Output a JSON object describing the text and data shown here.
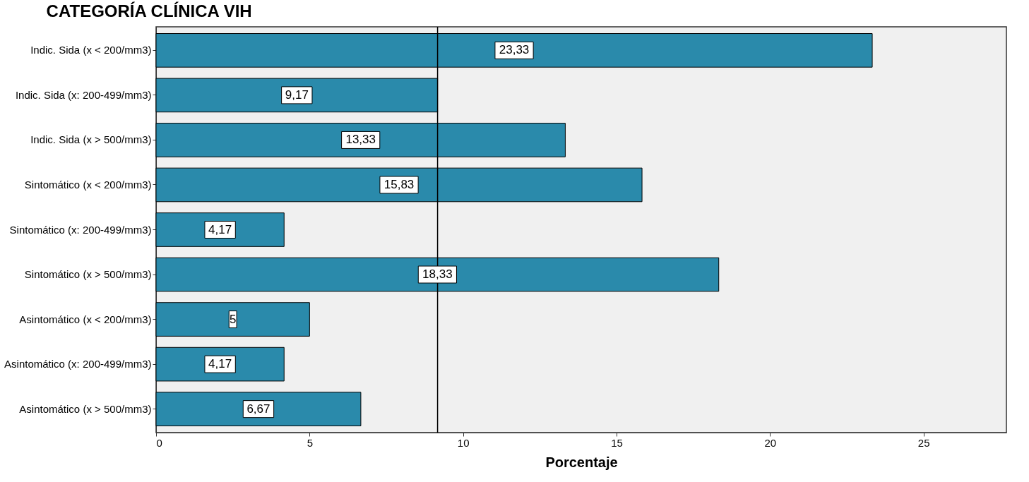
{
  "chart_data": {
    "type": "bar",
    "orientation": "horizontal",
    "title": "CATEGORÍA CLÍNICA VIH",
    "xlabel": "Porcentaje",
    "categories": [
      "Indic. Sida (x < 200/mm3)",
      "Indic. Sida (x: 200-499/mm3)",
      "Indic. Sida (x > 500/mm3)",
      "Sintomático (x < 200/mm3)",
      "Sintomático (x: 200-499/mm3)",
      "Sintomático (x > 500/mm3)",
      "Asintomático (x < 200/mm3)",
      "Asintomático (x: 200-499/mm3)",
      "Asintomático (x > 500/mm3)"
    ],
    "values": [
      23.33,
      9.17,
      13.33,
      15.83,
      4.17,
      18.33,
      5,
      4.17,
      6.67
    ],
    "value_labels": [
      "23,33",
      "9,17",
      "13,33",
      "15,83",
      "4,17",
      "18,33",
      "5",
      "4,17",
      "6,67"
    ],
    "color": "#2a8aab",
    "xlim": [
      0,
      27.7
    ],
    "xticks": [
      0,
      5,
      10,
      15,
      20,
      25
    ],
    "ref_lines": [
      {
        "axis": "x",
        "value": 9.17,
        "color": "#000000"
      }
    ],
    "grid": false
  }
}
